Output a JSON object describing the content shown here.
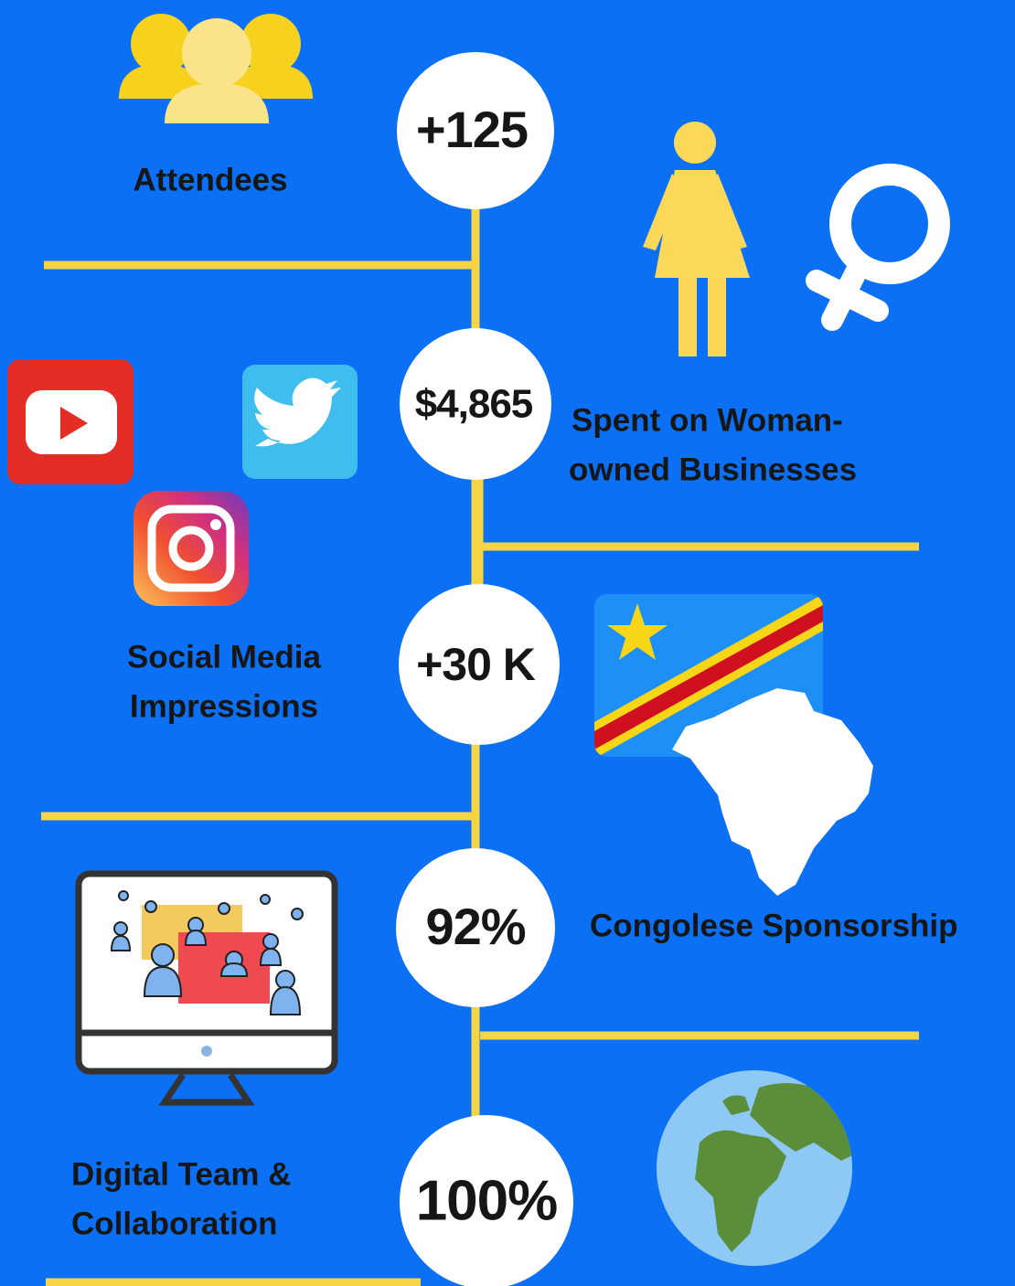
{
  "stats": [
    {
      "value": "+125",
      "label_lines": [
        "Attendees"
      ]
    },
    {
      "value": "$4,865",
      "label_lines": [
        "Spent on Woman-",
        "owned Businesses"
      ]
    },
    {
      "value": "+30 K",
      "label_lines": [
        "Social Media",
        "Impressions"
      ]
    },
    {
      "value": "92%",
      "label_lines": [
        "Congolese Sponsorship"
      ]
    },
    {
      "value": "100%",
      "label_lines": [
        "Digital Team &",
        "Collaboration"
      ]
    }
  ]
}
